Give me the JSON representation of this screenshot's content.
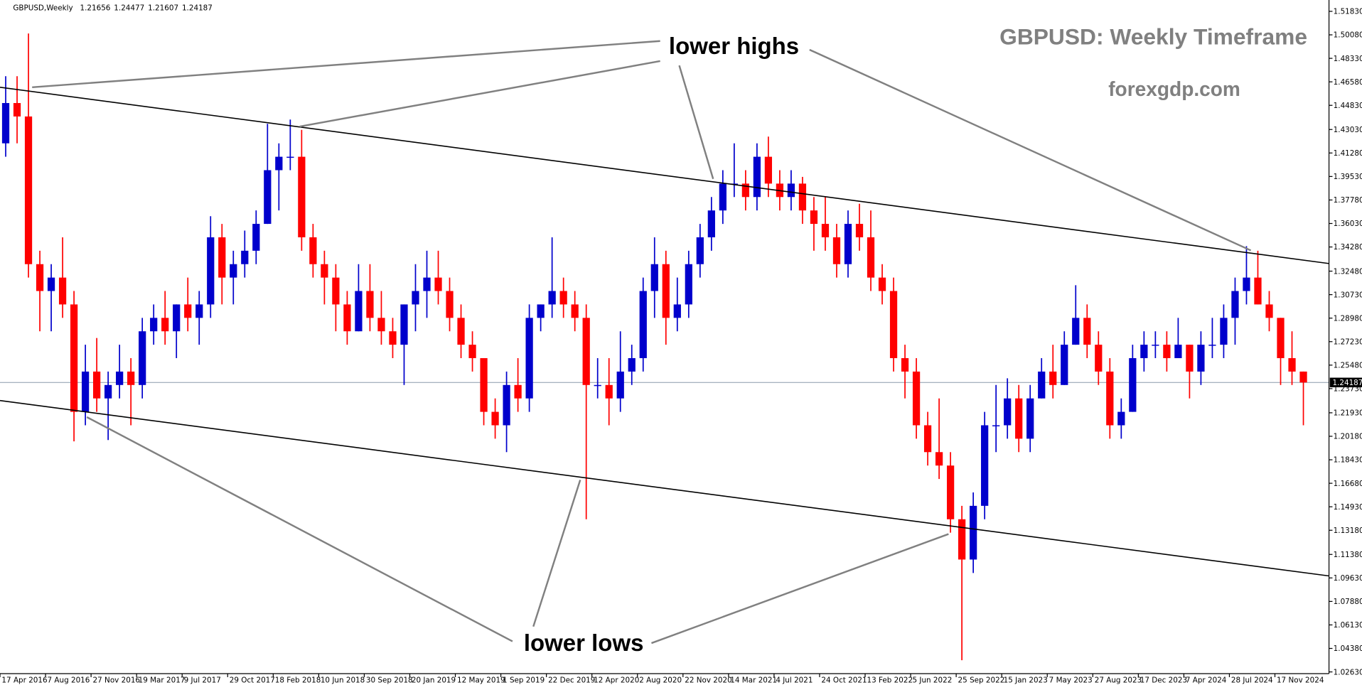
{
  "chart_data": {
    "type": "candlestick",
    "title": "GBPUSD: Weekly Timeframe",
    "subtitle": "forexgdp.com",
    "info": {
      "symbol": "GBPUSD,Weekly",
      "values": [
        1.21656,
        1.24477,
        1.21607,
        1.24187
      ]
    },
    "annotations": [
      "lower highs",
      "lower lows"
    ],
    "up_color": "#0000cc",
    "down_color": "#ff0000",
    "grid": false,
    "current_price": {
      "value": 1.24187,
      "label": "1.24187"
    },
    "xlim": [
      "17 Apr 2016",
      "30 Mar 2025"
    ],
    "xticks": [
      "17 Apr 2016",
      "7 Aug 2016",
      "27 Nov 2016",
      "19 Mar 2017",
      "9 Jul 2017",
      "29 Oct 2017",
      "18 Feb 2018",
      "10 Jun 2018",
      "30 Sep 2018",
      "20 Jan 2019",
      "12 May 2019",
      "1 Sep 2019",
      "22 Dec 2019",
      "12 Apr 2020",
      "2 Aug 2020",
      "22 Nov 2020",
      "14 Mar 2021",
      "4 Jul 2021",
      "24 Oct 2021",
      "13 Feb 2022",
      "5 Jun 2022",
      "25 Sep 2022",
      "15 Jan 2023",
      "7 May 2023",
      "27 Aug 2023",
      "17 Dec 2023",
      "7 Apr 2024",
      "28 Jul 2024",
      "17 Nov 2024"
    ],
    "ylim": [
      1.025,
      1.5248
    ],
    "yticks": [
      {
        "value": 1.5183,
        "label": "1.51830"
      },
      {
        "value": 1.5008,
        "label": "1.50080"
      },
      {
        "value": 1.4833,
        "label": "1.48330"
      },
      {
        "value": 1.4658,
        "label": "1.46580"
      },
      {
        "value": 1.4483,
        "label": "1.44830"
      },
      {
        "value": 1.4303,
        "label": "1.43030"
      },
      {
        "value": 1.4128,
        "label": "1.41280"
      },
      {
        "value": 1.3953,
        "label": "1.39530"
      },
      {
        "value": 1.3778,
        "label": "1.37780"
      },
      {
        "value": 1.3603,
        "label": "1.36030"
      },
      {
        "value": 1.3428,
        "label": "1.34280"
      },
      {
        "value": 1.3248,
        "label": "1.32480"
      },
      {
        "value": 1.3073,
        "label": "1.30730"
      },
      {
        "value": 1.2898,
        "label": "1.28980"
      },
      {
        "value": 1.2723,
        "label": "1.27230"
      },
      {
        "value": 1.2548,
        "label": "1.25480"
      },
      {
        "value": 1.2373,
        "label": "1.23730"
      },
      {
        "value": 1.2193,
        "label": "1.21930"
      },
      {
        "value": 1.2018,
        "label": "1.20180"
      },
      {
        "value": 1.1843,
        "label": "1.18430"
      },
      {
        "value": 1.1668,
        "label": "1.16680"
      },
      {
        "value": 1.1493,
        "label": "1.14930"
      },
      {
        "value": 1.1318,
        "label": "1.13180"
      },
      {
        "value": 1.1138,
        "label": "1.11380"
      },
      {
        "value": 1.0963,
        "label": "1.09630"
      },
      {
        "value": 1.0788,
        "label": "1.07880"
      },
      {
        "value": 1.0613,
        "label": "1.06130"
      },
      {
        "value": 1.0438,
        "label": "1.04380"
      },
      {
        "value": 1.0263,
        "label": "1.02630"
      }
    ],
    "x": [
      "17 Apr 2016",
      "15 May 2016",
      "12 Jun 2016",
      "10 Jul 2016",
      "7 Aug 2016",
      "4 Sep 2016",
      "2 Oct 2016",
      "30 Oct 2016",
      "27 Nov 2016",
      "25 Dec 2016",
      "22 Jan 2017",
      "19 Feb 2017",
      "19 Mar 2017",
      "16 Apr 2017",
      "14 May 2017",
      "11 Jun 2017",
      "9 Jul 2017",
      "6 Aug 2017",
      "3 Sep 2017",
      "1 Oct 2017",
      "29 Oct 2017",
      "26 Nov 2017",
      "24 Dec 2017",
      "21 Jan 2018",
      "18 Feb 2018",
      "18 Mar 2018",
      "15 Apr 2018",
      "13 May 2018",
      "10 Jun 2018",
      "8 Jul 2018",
      "5 Aug 2018",
      "2 Sep 2018",
      "30 Sep 2018",
      "28 Oct 2018",
      "25 Nov 2018",
      "23 Dec 2018",
      "20 Jan 2019",
      "17 Feb 2019",
      "17 Mar 2019",
      "14 Apr 2019",
      "12 May 2019",
      "9 Jun 2019",
      "7 Jul 2019",
      "4 Aug 2019",
      "1 Sep 2019",
      "29 Sep 2019",
      "27 Oct 2019",
      "24 Nov 2019",
      "22 Dec 2019",
      "19 Jan 2020",
      "16 Feb 2020",
      "15 Mar 2020",
      "12 Apr 2020",
      "10 May 2020",
      "7 Jun 2020",
      "5 Jul 2020",
      "2 Aug 2020",
      "30 Aug 2020",
      "27 Sep 2020",
      "25 Oct 2020",
      "22 Nov 2020",
      "20 Dec 2020",
      "17 Jan 2021",
      "14 Feb 2021",
      "14 Mar 2021",
      "11 Apr 2021",
      "9 May 2021",
      "6 Jun 2021",
      "4 Jul 2021",
      "1 Aug 2021",
      "29 Aug 2021",
      "26 Sep 2021",
      "24 Oct 2021",
      "21 Nov 2021",
      "19 Dec 2021",
      "16 Jan 2022",
      "13 Feb 2022",
      "13 Mar 2022",
      "10 Apr 2022",
      "8 May 2022",
      "5 Jun 2022",
      "3 Jul 2022",
      "31 Jul 2022",
      "28 Aug 2022",
      "25 Sep 2022",
      "23 Oct 2022",
      "20 Nov 2022",
      "18 Dec 2022",
      "15 Jan 2023",
      "12 Feb 2023",
      "12 Mar 2023",
      "9 Apr 2023",
      "7 May 2023",
      "4 Jun 2023",
      "2 Jul 2023",
      "30 Jul 2023",
      "27 Aug 2023",
      "24 Sep 2023",
      "22 Oct 2023",
      "19 Nov 2023",
      "17 Dec 2023",
      "14 Jan 2024",
      "11 Feb 2024",
      "10 Mar 2024",
      "7 Apr 2024",
      "5 May 2024",
      "2 Jun 2024",
      "30 Jun 2024",
      "28 Jul 2024",
      "25 Aug 2024",
      "22 Sep 2024",
      "20 Oct 2024",
      "17 Nov 2024",
      "15 Dec 2024",
      "12 Jan 2025"
    ],
    "open": [
      1.42,
      1.45,
      1.44,
      1.33,
      1.31,
      1.32,
      1.3,
      1.22,
      1.25,
      1.23,
      1.24,
      1.25,
      1.24,
      1.28,
      1.29,
      1.28,
      1.3,
      1.29,
      1.3,
      1.35,
      1.32,
      1.33,
      1.34,
      1.36,
      1.4,
      1.41,
      1.41,
      1.35,
      1.33,
      1.32,
      1.3,
      1.28,
      1.31,
      1.29,
      1.28,
      1.27,
      1.3,
      1.31,
      1.32,
      1.31,
      1.29,
      1.27,
      1.26,
      1.22,
      1.21,
      1.24,
      1.23,
      1.29,
      1.3,
      1.31,
      1.3,
      1.29,
      1.24,
      1.24,
      1.23,
      1.25,
      1.26,
      1.31,
      1.33,
      1.29,
      1.3,
      1.33,
      1.35,
      1.37,
      1.39,
      1.39,
      1.38,
      1.41,
      1.39,
      1.38,
      1.39,
      1.37,
      1.36,
      1.35,
      1.33,
      1.36,
      1.35,
      1.32,
      1.31,
      1.26,
      1.25,
      1.21,
      1.19,
      1.18,
      1.14,
      1.11,
      1.15,
      1.21,
      1.21,
      1.23,
      1.2,
      1.23,
      1.25,
      1.24,
      1.27,
      1.29,
      1.27,
      1.25,
      1.21,
      1.22,
      1.26,
      1.27,
      1.27,
      1.26,
      1.27,
      1.25,
      1.27,
      1.27,
      1.29,
      1.31,
      1.32,
      1.3,
      1.29,
      1.26,
      1.25
    ],
    "high": [
      1.47,
      1.47,
      1.5018,
      1.34,
      1.33,
      1.35,
      1.31,
      1.27,
      1.275,
      1.25,
      1.27,
      1.26,
      1.29,
      1.3,
      1.31,
      1.3,
      1.32,
      1.31,
      1.3657,
      1.36,
      1.34,
      1.355,
      1.37,
      1.4345,
      1.42,
      1.4377,
      1.43,
      1.36,
      1.34,
      1.33,
      1.31,
      1.33,
      1.33,
      1.31,
      1.29,
      1.3,
      1.33,
      1.34,
      1.34,
      1.32,
      1.3,
      1.28,
      1.26,
      1.23,
      1.25,
      1.26,
      1.3,
      1.3,
      1.35,
      1.32,
      1.31,
      1.3,
      1.26,
      1.26,
      1.28,
      1.27,
      1.32,
      1.35,
      1.34,
      1.32,
      1.34,
      1.36,
      1.38,
      1.4,
      1.42,
      1.4,
      1.42,
      1.425,
      1.4,
      1.4,
      1.395,
      1.38,
      1.38,
      1.36,
      1.37,
      1.375,
      1.37,
      1.33,
      1.32,
      1.27,
      1.26,
      1.22,
      1.23,
      1.19,
      1.15,
      1.16,
      1.22,
      1.24,
      1.245,
      1.24,
      1.24,
      1.26,
      1.27,
      1.28,
      1.3143,
      1.3,
      1.28,
      1.26,
      1.23,
      1.27,
      1.28,
      1.28,
      1.28,
      1.29,
      1.27,
      1.28,
      1.29,
      1.3,
      1.32,
      1.3434,
      1.34,
      1.31,
      1.29,
      1.28,
      1.25
    ],
    "low": [
      1.41,
      1.42,
      1.32,
      1.28,
      1.28,
      1.29,
      1.198,
      1.21,
      1.22,
      1.199,
      1.23,
      1.21,
      1.23,
      1.27,
      1.27,
      1.26,
      1.28,
      1.27,
      1.29,
      1.3,
      1.3,
      1.32,
      1.33,
      1.36,
      1.37,
      1.4,
      1.34,
      1.32,
      1.3,
      1.28,
      1.27,
      1.28,
      1.28,
      1.27,
      1.26,
      1.24,
      1.28,
      1.29,
      1.3,
      1.28,
      1.26,
      1.25,
      1.21,
      1.2,
      1.19,
      1.22,
      1.22,
      1.28,
      1.29,
      1.29,
      1.28,
      1.14,
      1.23,
      1.21,
      1.22,
      1.24,
      1.25,
      1.29,
      1.27,
      1.28,
      1.29,
      1.32,
      1.34,
      1.36,
      1.38,
      1.37,
      1.37,
      1.38,
      1.37,
      1.37,
      1.36,
      1.34,
      1.34,
      1.32,
      1.32,
      1.34,
      1.31,
      1.3,
      1.25,
      1.23,
      1.2,
      1.18,
      1.17,
      1.13,
      1.035,
      1.1,
      1.14,
      1.19,
      1.2,
      1.19,
      1.19,
      1.23,
      1.23,
      1.24,
      1.27,
      1.26,
      1.24,
      1.2,
      1.2,
      1.22,
      1.25,
      1.26,
      1.25,
      1.26,
      1.23,
      1.24,
      1.26,
      1.26,
      1.27,
      1.3,
      1.3,
      1.28,
      1.24,
      1.24,
      1.21
    ],
    "close": [
      1.45,
      1.44,
      1.33,
      1.31,
      1.32,
      1.3,
      1.22,
      1.25,
      1.23,
      1.24,
      1.25,
      1.24,
      1.28,
      1.29,
      1.28,
      1.3,
      1.29,
      1.3,
      1.35,
      1.32,
      1.33,
      1.34,
      1.36,
      1.4,
      1.41,
      1.41,
      1.35,
      1.33,
      1.32,
      1.3,
      1.28,
      1.31,
      1.29,
      1.28,
      1.27,
      1.3,
      1.31,
      1.32,
      1.31,
      1.29,
      1.27,
      1.26,
      1.22,
      1.21,
      1.24,
      1.23,
      1.29,
      1.3,
      1.31,
      1.3,
      1.29,
      1.24,
      1.24,
      1.23,
      1.25,
      1.26,
      1.31,
      1.33,
      1.29,
      1.3,
      1.33,
      1.35,
      1.37,
      1.39,
      1.39,
      1.38,
      1.41,
      1.39,
      1.38,
      1.39,
      1.37,
      1.36,
      1.35,
      1.33,
      1.36,
      1.35,
      1.32,
      1.31,
      1.26,
      1.25,
      1.21,
      1.19,
      1.18,
      1.14,
      1.11,
      1.15,
      1.21,
      1.21,
      1.23,
      1.2,
      1.23,
      1.25,
      1.24,
      1.27,
      1.29,
      1.27,
      1.25,
      1.21,
      1.22,
      1.26,
      1.27,
      1.27,
      1.26,
      1.27,
      1.25,
      1.27,
      1.27,
      1.29,
      1.31,
      1.32,
      1.3,
      1.29,
      1.26,
      1.25,
      1.24187
    ]
  }
}
